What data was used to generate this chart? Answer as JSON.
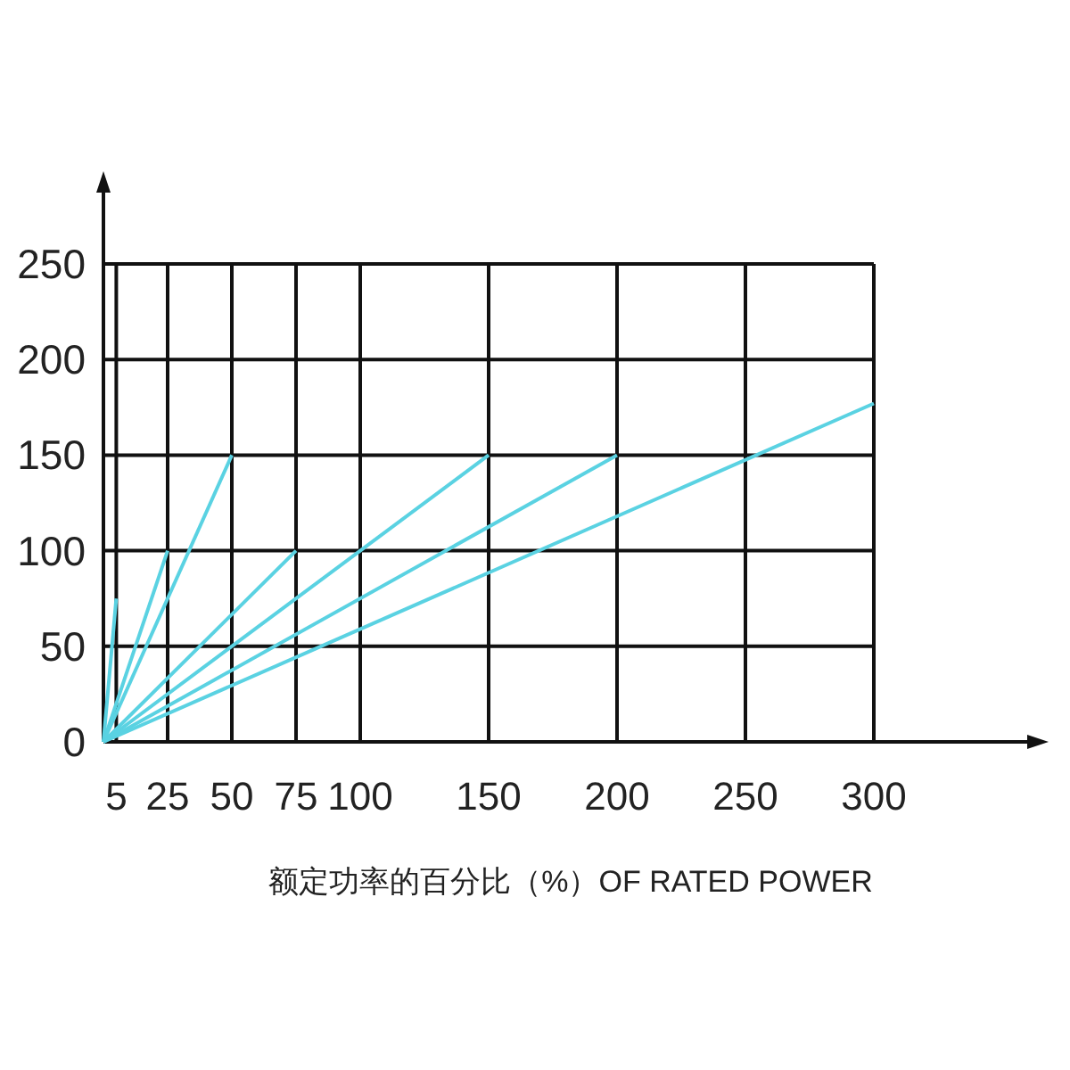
{
  "chart_data": {
    "type": "line",
    "xlabel": "额定功率的百分比（%）OF RATED POWER",
    "xlim": [
      0,
      300
    ],
    "xticks": [
      5,
      25,
      50,
      75,
      100,
      150,
      200,
      250,
      300
    ],
    "ylim": [
      0,
      250
    ],
    "yticks": [
      0,
      50,
      100,
      150,
      200,
      250
    ],
    "grid": true,
    "series": [
      {
        "color": "#5ad2e2",
        "x": [
          0,
          5
        ],
        "values": [
          0,
          75
        ]
      },
      {
        "color": "#5ad2e2",
        "x": [
          0,
          25
        ],
        "values": [
          0,
          100
        ]
      },
      {
        "color": "#5ad2e2",
        "x": [
          0,
          50
        ],
        "values": [
          0,
          150
        ]
      },
      {
        "color": "#5ad2e2",
        "x": [
          0,
          75
        ],
        "values": [
          0,
          100
        ]
      },
      {
        "color": "#5ad2e2",
        "x": [
          0,
          150
        ],
        "values": [
          0,
          150
        ]
      },
      {
        "color": "#5ad2e2",
        "x": [
          0,
          200
        ],
        "values": [
          0,
          150
        ]
      },
      {
        "color": "#5ad2e2",
        "x": [
          0,
          300
        ],
        "values": [
          0,
          177
        ]
      }
    ]
  }
}
